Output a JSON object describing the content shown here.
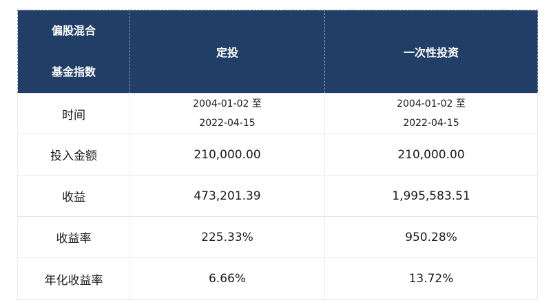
{
  "header": {
    "col1_line1": "偏股混合",
    "col1_line2": "基金指数",
    "col2": "定投",
    "col3": "一次性投资"
  },
  "rows": {
    "time": {
      "label": "时间",
      "dingtou_line1": "2004-01-02 至",
      "dingtou_line2": "2022-04-15",
      "lumpsum_line1": "2004-01-02 至",
      "lumpsum_line2": "2022-04-15"
    },
    "investment": {
      "label": "投入金额",
      "dingtou": "210,000.00",
      "lumpsum": "210,000.00"
    },
    "gain": {
      "label": "收益",
      "dingtou": "473,201.39",
      "lumpsum": "1,995,583.51"
    },
    "return_rate": {
      "label": "收益率",
      "dingtou": "225.33%",
      "lumpsum": "950.28%"
    },
    "annualized_return": {
      "label": "年化收益率",
      "dingtou": "6.66%",
      "lumpsum": "13.72%"
    }
  },
  "colors": {
    "header_bg": "#213f66",
    "header_text": "#ffffff",
    "body_text": "#1a1a1a"
  }
}
